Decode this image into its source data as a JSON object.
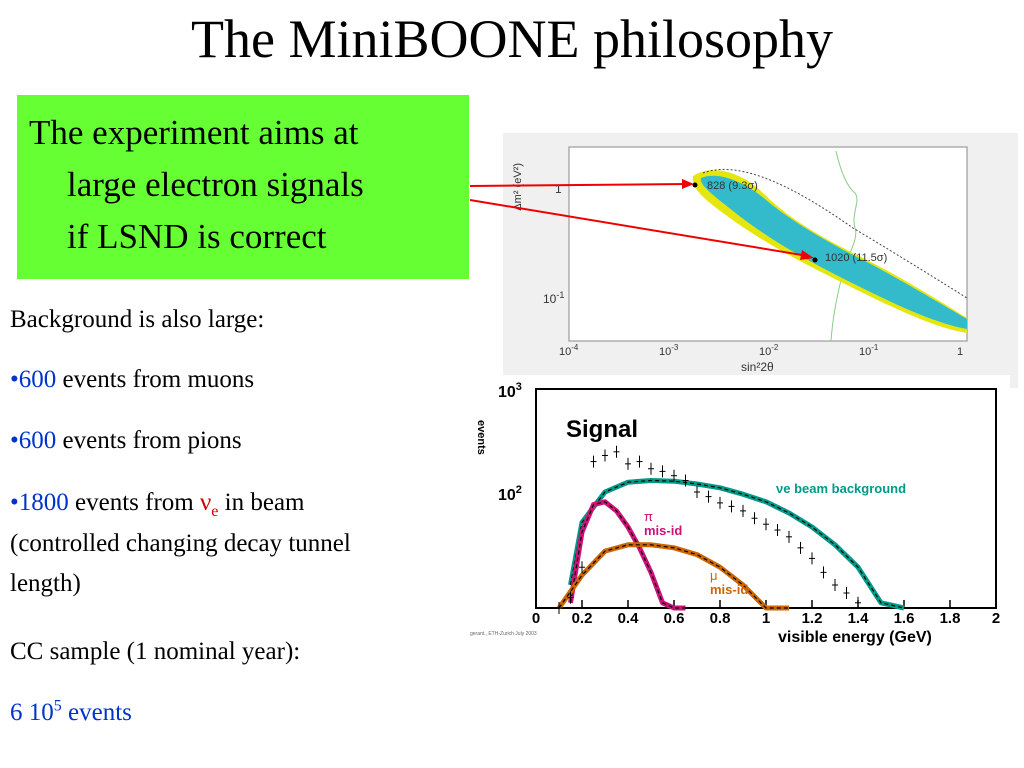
{
  "title": "The MiniBOONE philosophy",
  "callout": {
    "line1": "The experiment aims at",
    "line2": "large electron signals",
    "line3": "if LSND is correct",
    "bg_color": "#66ff33"
  },
  "bullets": {
    "background": "Background is also large:",
    "muons_count": "600",
    "muons_text": " events from muons",
    "pions_count": "600",
    "pions_text": " events from pions",
    "beam_count": "1800",
    "beam_text_pre": " events from ",
    "nu": "ν",
    "nu_sub": "e",
    "beam_text_post": " in beam",
    "controlled_line1": "(controlled changing decay tunnel",
    "controlled_line2": "length)",
    "cc_sample": "CC sample (1 nominal year):",
    "events_base": "6 10",
    "events_exp": "5",
    "events_word": " events",
    "highlight_color": "#0033cc"
  },
  "upper_plot": {
    "ylabel": "Δm² (eV²)",
    "xlabel": "sin²2θ",
    "ytick_1": "1",
    "ytick_2": "10",
    "ytick_2_exp": "-1",
    "xticks": [
      {
        "base": "10",
        "exp": "-4"
      },
      {
        "base": "10",
        "exp": "-3"
      },
      {
        "base": "10",
        "exp": "-2"
      },
      {
        "base": "10",
        "exp": "-1"
      },
      {
        "base": "1",
        "exp": ""
      }
    ],
    "point_a": "828 (9.3σ)",
    "point_b": "1020 (11.5σ)"
  },
  "chart_data": {
    "type": "line",
    "title": "Signal",
    "xlabel": "visible energy (GeV)",
    "ylabel": "events",
    "xlim": [
      0,
      2
    ],
    "xticks": [
      "0",
      "0.2",
      "0.4",
      "0.6",
      "0.8",
      "1",
      "1.2",
      "1.4",
      "1.6",
      "1.8",
      "2"
    ],
    "yticks": [
      "10",
      "10"
    ],
    "ytick_exps": [
      "3",
      "2"
    ],
    "ylog": true,
    "credit": "gerant., ETH-Zurich July 2003",
    "series": [
      {
        "name": "νe beam background",
        "color": "#009988",
        "x": [
          0.15,
          0.2,
          0.3,
          0.4,
          0.5,
          0.6,
          0.7,
          0.8,
          0.9,
          1.0,
          1.1,
          1.2,
          1.3,
          1.4,
          1.5,
          1.6
        ],
        "y": [
          12,
          50,
          100,
          125,
          130,
          128,
          120,
          110,
          95,
          80,
          62,
          45,
          30,
          18,
          8,
          3
        ]
      },
      {
        "name": "π mis-id",
        "label_top": "π",
        "label_bottom": "mis-id",
        "color": "#cc1177",
        "x": [
          0.15,
          0.2,
          0.25,
          0.3,
          0.35,
          0.4,
          0.45,
          0.5,
          0.55,
          0.6,
          0.65
        ],
        "y": [
          8,
          40,
          75,
          80,
          65,
          45,
          28,
          16,
          8,
          4,
          2
        ]
      },
      {
        "name": "μ mis-id",
        "label_top": "μ",
        "label_bottom": "mis-id",
        "color": "#cc6600",
        "x": [
          0.1,
          0.2,
          0.3,
          0.4,
          0.5,
          0.6,
          0.7,
          0.8,
          0.9,
          1.0,
          1.1
        ],
        "y": [
          3,
          15,
          26,
          30,
          30,
          28,
          24,
          18,
          12,
          6,
          2
        ]
      },
      {
        "name": "Signal",
        "color": "#000000",
        "x": [
          0.1,
          0.15,
          0.2,
          0.25,
          0.3,
          0.35,
          0.4,
          0.45,
          0.5,
          0.55,
          0.6,
          0.65,
          0.7,
          0.75,
          0.8,
          0.85,
          0.9,
          0.95,
          1.0,
          1.05,
          1.1,
          1.15,
          1.2,
          1.25,
          1.3,
          1.35,
          1.4
        ],
        "y": [
          6,
          9,
          18,
          200,
          230,
          250,
          190,
          200,
          170,
          160,
          145,
          130,
          100,
          90,
          78,
          72,
          65,
          55,
          48,
          42,
          36,
          28,
          22,
          16,
          12,
          10,
          8
        ]
      }
    ]
  }
}
